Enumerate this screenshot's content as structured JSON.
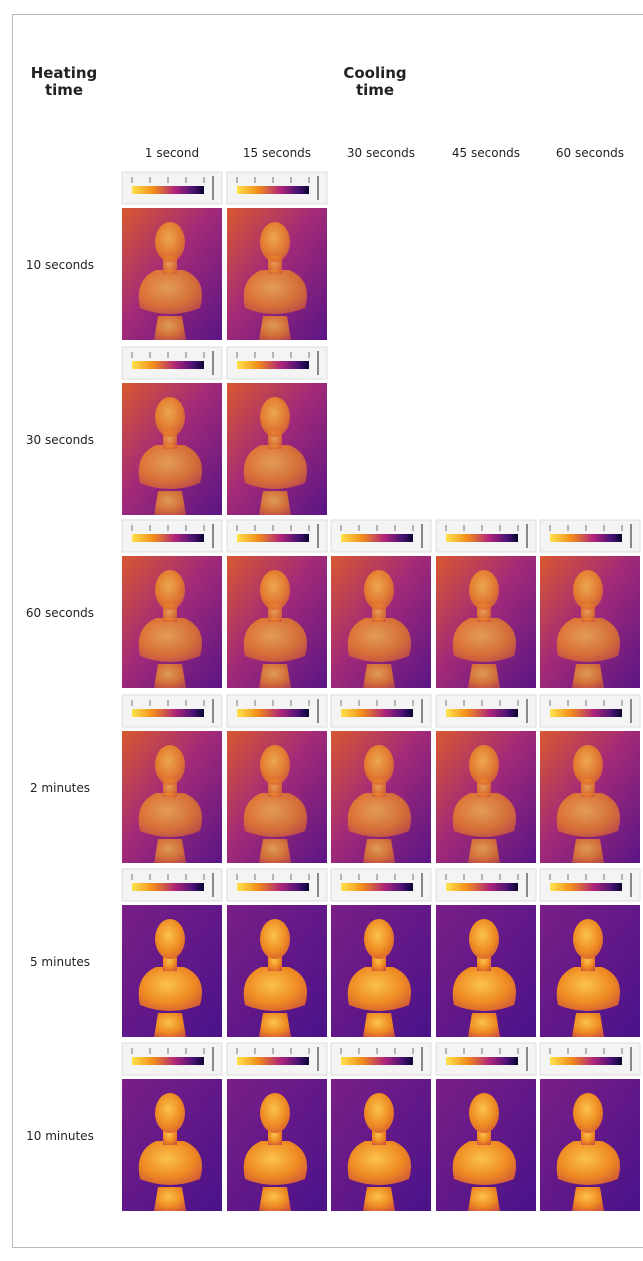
{
  "header": {
    "heating": "Heating\ntime",
    "cooling": "Cooling\ntime"
  },
  "columns": [
    "1 second",
    "15 seconds",
    "30 seconds",
    "45 seconds",
    "60 seconds"
  ],
  "rows": [
    "10 seconds",
    "30 seconds",
    "60 seconds",
    "2 minutes",
    "5 minutes",
    "10 minutes"
  ]
}
